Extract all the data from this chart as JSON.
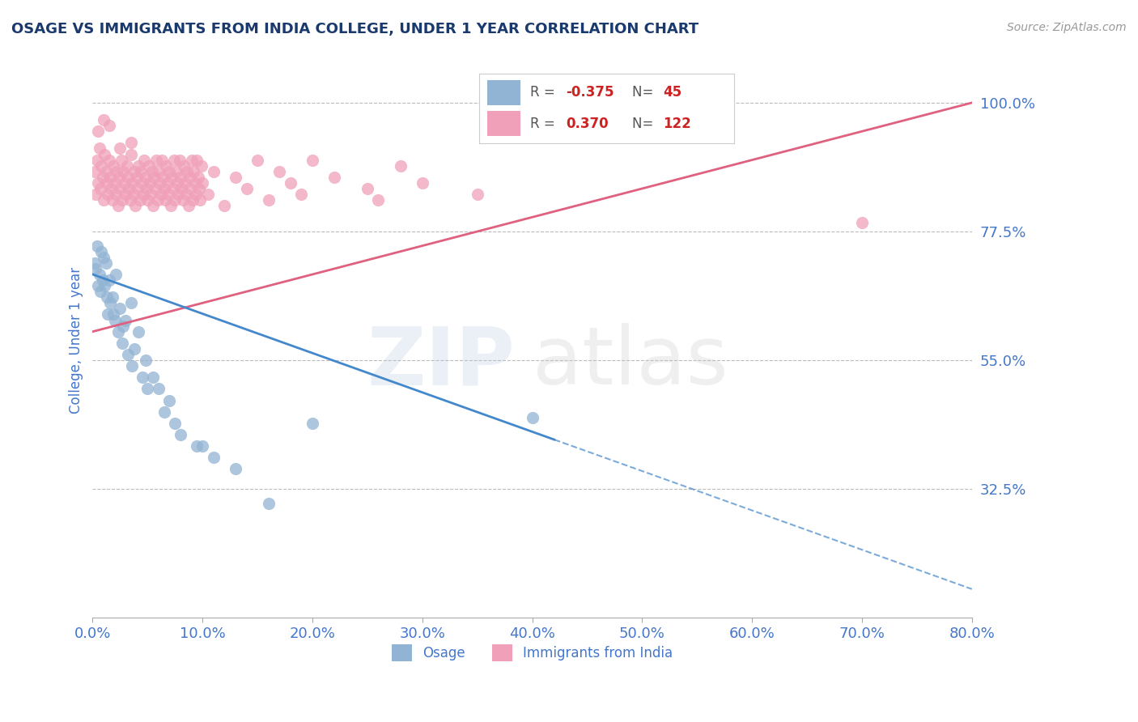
{
  "title": "OSAGE VS IMMIGRANTS FROM INDIA COLLEGE, UNDER 1 YEAR CORRELATION CHART",
  "source_text": "Source: ZipAtlas.com",
  "xlabel_osage": "Osage",
  "xlabel_india": "Immigrants from India",
  "ylabel": "College, Under 1 year",
  "xmin": 0.0,
  "xmax": 80.0,
  "ymin": 10.0,
  "ymax": 107.0,
  "yticks": [
    32.5,
    55.0,
    77.5,
    100.0
  ],
  "xticks": [
    0.0,
    10.0,
    20.0,
    30.0,
    40.0,
    50.0,
    60.0,
    70.0,
    80.0
  ],
  "osage_color": "#92b4d4",
  "india_color": "#f0a0b8",
  "osage_line_color": "#4488cc",
  "india_line_color": "#e06080",
  "r_osage": -0.375,
  "n_osage": 45,
  "r_india": 0.37,
  "n_india": 122,
  "watermark_zip": "ZIP",
  "watermark_atlas": "atlas",
  "watermark_color_zip": "#b8cce4",
  "watermark_color_atlas": "#c8c8c8",
  "title_color": "#1a3a6e",
  "axis_label_color": "#4477cc",
  "tick_color": "#4477cc",
  "grid_color": "#bbbbbb",
  "legend_r_color": "#cc2222",
  "legend_n_color": "#cc2222",
  "legend_label_color": "#555555",
  "osage_scatter_x": [
    0.5,
    1.2,
    1.8,
    2.1,
    2.5,
    0.8,
    1.5,
    3.0,
    3.5,
    4.2,
    0.3,
    0.7,
    1.0,
    1.4,
    2.8,
    3.8,
    4.8,
    5.5,
    6.0,
    7.0,
    0.4,
    0.9,
    1.6,
    2.3,
    3.2,
    4.5,
    6.5,
    8.0,
    9.5,
    11.0,
    0.6,
    1.1,
    1.9,
    2.7,
    3.6,
    5.0,
    7.5,
    10.0,
    13.0,
    16.0,
    0.2,
    1.3,
    2.0,
    20.0,
    40.0
  ],
  "osage_scatter_y": [
    68.0,
    72.0,
    66.0,
    70.0,
    64.0,
    74.0,
    69.0,
    62.0,
    65.0,
    60.0,
    71.0,
    67.0,
    73.0,
    63.0,
    61.0,
    57.0,
    55.0,
    52.0,
    50.0,
    48.0,
    75.0,
    69.0,
    65.0,
    60.0,
    56.0,
    52.0,
    46.0,
    42.0,
    40.0,
    38.0,
    70.0,
    68.0,
    63.0,
    58.0,
    54.0,
    50.0,
    44.0,
    40.0,
    36.0,
    30.0,
    72.0,
    66.0,
    62.0,
    44.0,
    45.0
  ],
  "india_scatter_x": [
    0.2,
    0.3,
    0.4,
    0.5,
    0.6,
    0.7,
    0.8,
    0.9,
    1.0,
    1.1,
    1.2,
    1.3,
    1.4,
    1.5,
    1.6,
    1.7,
    1.8,
    1.9,
    2.0,
    2.1,
    2.2,
    2.3,
    2.4,
    2.5,
    2.6,
    2.7,
    2.8,
    2.9,
    3.0,
    3.1,
    3.2,
    3.3,
    3.4,
    3.5,
    3.6,
    3.7,
    3.8,
    3.9,
    4.0,
    4.1,
    4.2,
    4.3,
    4.4,
    4.5,
    4.6,
    4.7,
    4.8,
    4.9,
    5.0,
    5.1,
    5.2,
    5.3,
    5.4,
    5.5,
    5.6,
    5.7,
    5.8,
    5.9,
    6.0,
    6.1,
    6.2,
    6.3,
    6.4,
    6.5,
    6.6,
    6.7,
    6.8,
    6.9,
    7.0,
    7.1,
    7.2,
    7.3,
    7.4,
    7.5,
    7.6,
    7.7,
    7.8,
    7.9,
    8.0,
    8.1,
    8.2,
    8.3,
    8.4,
    8.5,
    8.6,
    8.7,
    8.8,
    8.9,
    9.0,
    9.1,
    9.2,
    9.3,
    9.4,
    9.5,
    9.6,
    9.7,
    9.8,
    9.9,
    10.0,
    10.5,
    11.0,
    12.0,
    13.0,
    14.0,
    15.0,
    16.0,
    17.0,
    18.0,
    19.0,
    20.0,
    22.0,
    25.0,
    26.0,
    28.0,
    30.0,
    35.0,
    0.5,
    1.0,
    1.5,
    2.5,
    3.5,
    70.0
  ],
  "india_scatter_y": [
    88.0,
    84.0,
    90.0,
    86.0,
    92.0,
    85.0,
    89.0,
    87.0,
    83.0,
    91.0,
    88.0,
    86.0,
    84.0,
    90.0,
    87.0,
    85.0,
    83.0,
    89.0,
    86.0,
    84.0,
    88.0,
    82.0,
    87.0,
    85.0,
    90.0,
    83.0,
    88.0,
    86.0,
    84.0,
    89.0,
    87.0,
    85.0,
    83.0,
    91.0,
    86.0,
    84.0,
    88.0,
    82.0,
    87.0,
    85.0,
    89.0,
    83.0,
    88.0,
    86.0,
    84.0,
    90.0,
    87.0,
    85.0,
    83.0,
    89.0,
    86.0,
    84.0,
    88.0,
    82.0,
    87.0,
    85.0,
    90.0,
    83.0,
    88.0,
    86.0,
    84.0,
    90.0,
    87.0,
    85.0,
    83.0,
    89.0,
    86.0,
    84.0,
    88.0,
    82.0,
    87.0,
    85.0,
    90.0,
    83.0,
    88.0,
    86.0,
    84.0,
    90.0,
    87.0,
    85.0,
    83.0,
    89.0,
    86.0,
    84.0,
    88.0,
    82.0,
    87.0,
    85.0,
    90.0,
    83.0,
    88.0,
    86.0,
    84.0,
    90.0,
    87.0,
    85.0,
    83.0,
    89.0,
    86.0,
    84.0,
    88.0,
    82.0,
    87.0,
    85.0,
    90.0,
    83.0,
    88.0,
    86.0,
    84.0,
    90.0,
    87.0,
    85.0,
    83.0,
    89.0,
    86.0,
    84.0,
    95.0,
    97.0,
    96.0,
    92.0,
    93.0,
    79.0
  ],
  "osage_trendline_x": [
    0.0,
    80.0
  ],
  "osage_trendline_y": [
    70.0,
    15.0
  ],
  "india_trendline_x": [
    0.0,
    80.0
  ],
  "india_trendline_y": [
    60.0,
    100.0
  ]
}
